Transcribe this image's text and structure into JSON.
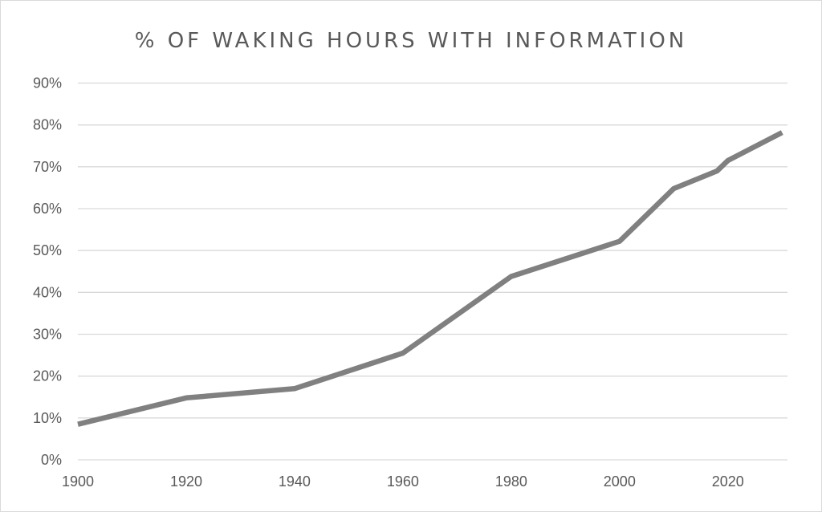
{
  "chart_data": {
    "type": "line",
    "title": "% OF WAKING HOURS WITH INFORMATION",
    "xlabel": "",
    "ylabel": "",
    "xlim": [
      1900,
      2031
    ],
    "ylim": [
      0,
      90
    ],
    "x_ticks": [
      "1900",
      "1920",
      "1940",
      "1960",
      "1980",
      "2000",
      "2020"
    ],
    "y_ticks": [
      "0%",
      "10%",
      "20%",
      "30%",
      "40%",
      "50%",
      "60%",
      "70%",
      "80%",
      "90%"
    ],
    "grid": true,
    "legend": "none",
    "series": [
      {
        "color": "#808080",
        "x": [
          1900,
          1920,
          1940,
          1960,
          1980,
          2000,
          2010,
          2018,
          2020,
          2030
        ],
        "y": [
          8.5,
          14.8,
          17,
          25.5,
          43.8,
          52.2,
          64.8,
          69,
          71.5,
          78.2
        ]
      }
    ]
  },
  "colors": {
    "line": "#808080",
    "grid": "#d9d9d9",
    "text": "#595959"
  }
}
